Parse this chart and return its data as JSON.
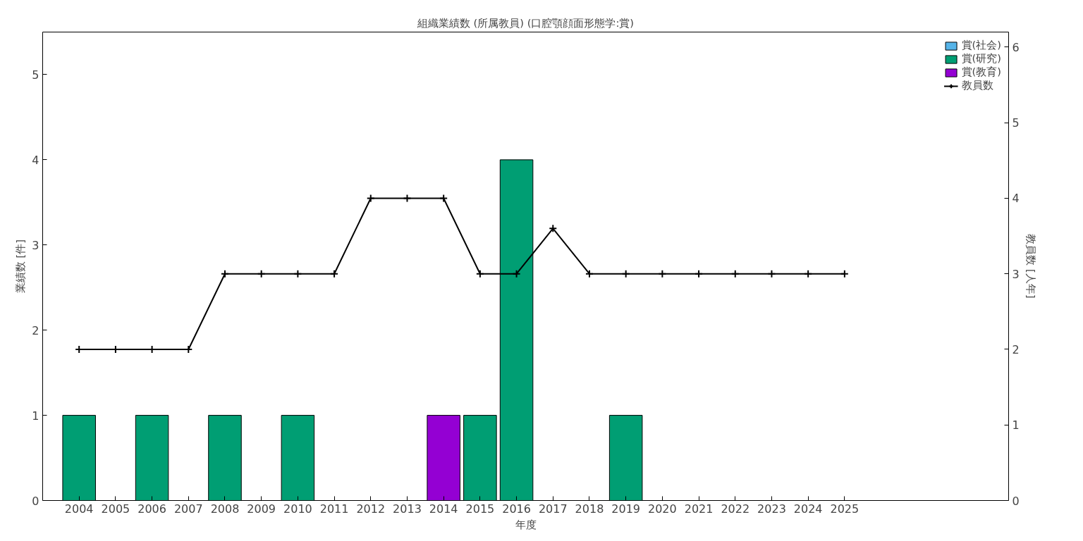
{
  "chart_data": {
    "type": "bar",
    "title": "組織業績数 (所属教員) (口腔顎顔面形態学:賞)",
    "xlabel": "年度",
    "ylabel": "業績数 [件]",
    "y2label": "教員数 [人年]",
    "x": [
      2004,
      2005,
      2006,
      2007,
      2008,
      2009,
      2010,
      2011,
      2012,
      2013,
      2014,
      2015,
      2016,
      2017,
      2018,
      2019,
      2020,
      2021,
      2022,
      2023,
      2024,
      2025
    ],
    "stacked": true,
    "series": [
      {
        "name": "賞(社会)",
        "color": "#56b4e9",
        "values": [
          0,
          0,
          0,
          0,
          0,
          0,
          0,
          0,
          0,
          0,
          0,
          0,
          0,
          0,
          0,
          0,
          0,
          0,
          0,
          0,
          0,
          0
        ]
      },
      {
        "name": "賞(研究)",
        "color": "#009e73",
        "values": [
          1,
          0,
          1,
          0,
          1,
          0,
          1,
          0,
          0,
          0,
          0,
          1,
          4,
          0,
          0,
          1,
          0,
          0,
          0,
          0,
          0,
          0
        ]
      },
      {
        "name": "賞(教育)",
        "color": "#9400d3",
        "values": [
          0,
          0,
          0,
          0,
          0,
          0,
          0,
          0,
          0,
          0,
          1,
          0,
          0,
          0,
          0,
          0,
          0,
          0,
          0,
          0,
          0,
          0
        ]
      },
      {
        "name": "教員数",
        "type": "line",
        "axis": "y2",
        "color": "#000000",
        "marker": "cross",
        "line_style": "solid",
        "values": [
          2,
          2,
          2,
          2,
          3,
          3,
          3,
          3,
          4,
          4,
          4,
          3,
          3,
          3.6,
          3,
          3,
          3,
          3,
          3,
          3,
          3,
          3
        ]
      }
    ],
    "xlim": [
      2003,
      2029.5
    ],
    "xticks": [
      2004,
      2005,
      2006,
      2007,
      2008,
      2009,
      2010,
      2011,
      2012,
      2013,
      2014,
      2015,
      2016,
      2017,
      2018,
      2019,
      2020,
      2021,
      2022,
      2023,
      2024,
      2025
    ],
    "ylim": [
      0,
      5.5
    ],
    "yticks": [
      0,
      1,
      2,
      3,
      4,
      5
    ],
    "y2lim": [
      0,
      6.2
    ],
    "y2ticks": [
      0,
      1,
      2,
      3,
      4,
      5,
      6
    ],
    "grid": false,
    "legend": "top right"
  }
}
